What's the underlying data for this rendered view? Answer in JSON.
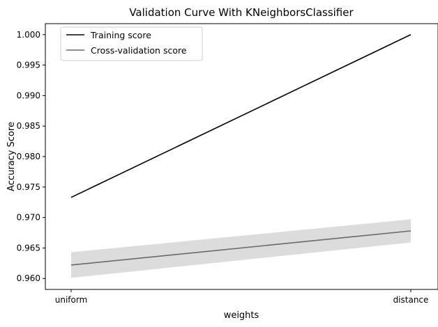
{
  "chart_data": {
    "type": "line",
    "title": "Validation Curve With KNeighborsClassifier",
    "xlabel": "weights",
    "ylabel": "Accuracy Score",
    "categories": [
      "uniform",
      "distance"
    ],
    "ylim": [
      0.9582,
      1.0018
    ],
    "yticks": [
      "0.960",
      "0.965",
      "0.970",
      "0.975",
      "0.980",
      "0.985",
      "0.990",
      "0.995",
      "1.000"
    ],
    "grid": false,
    "legend_position": "top-left",
    "series": [
      {
        "name": "Training score",
        "values": [
          0.9733,
          1.0
        ],
        "band_lower": [
          0.9732,
          1.0
        ],
        "band_upper": [
          0.9734,
          1.0
        ],
        "color": "#000000",
        "band_color": "#cccccc"
      },
      {
        "name": "Cross-validation score",
        "values": [
          0.9622,
          0.9678
        ],
        "band_lower": [
          0.9601,
          0.9659
        ],
        "band_upper": [
          0.9643,
          0.9697
        ],
        "color": "#696969",
        "band_color": "#dcdcdc"
      }
    ]
  }
}
